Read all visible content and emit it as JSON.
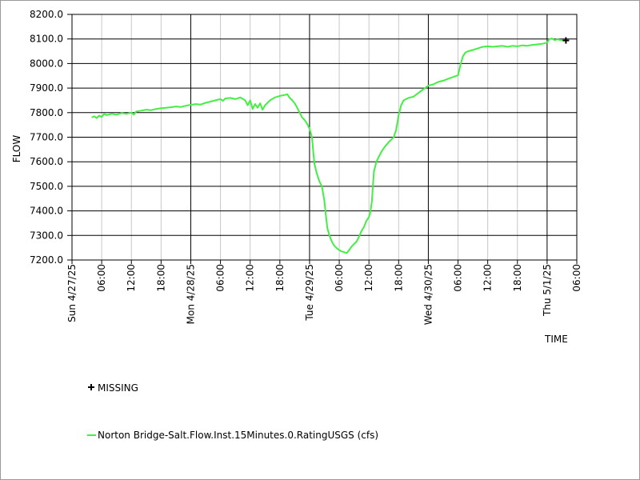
{
  "chart_data": {
    "type": "line",
    "xlabel": "TIME",
    "ylabel": "FLOW",
    "ylim": [
      7200,
      8200
    ],
    "y_ticks": [
      "7200.0",
      "7300.0",
      "7400.0",
      "7500.0",
      "7600.0",
      "7700.0",
      "7800.0",
      "7900.0",
      "8000.0",
      "8100.0",
      "8200.0"
    ],
    "xlim_hours": [
      0,
      102
    ],
    "x_ticks": [
      {
        "h": 0,
        "label": "Sun 4/27/25",
        "major": true
      },
      {
        "h": 6,
        "label": "06:00",
        "major": false
      },
      {
        "h": 12,
        "label": "12:00",
        "major": false
      },
      {
        "h": 18,
        "label": "18:00",
        "major": false
      },
      {
        "h": 24,
        "label": "Mon 4/28/25",
        "major": true
      },
      {
        "h": 30,
        "label": "06:00",
        "major": false
      },
      {
        "h": 36,
        "label": "12:00",
        "major": false
      },
      {
        "h": 42,
        "label": "18:00",
        "major": false
      },
      {
        "h": 48,
        "label": "Tue 4/29/25",
        "major": true
      },
      {
        "h": 54,
        "label": "06:00",
        "major": false
      },
      {
        "h": 60,
        "label": "12:00",
        "major": false
      },
      {
        "h": 66,
        "label": "18:00",
        "major": false
      },
      {
        "h": 72,
        "label": "Wed 4/30/25",
        "major": true
      },
      {
        "h": 78,
        "label": "06:00",
        "major": false
      },
      {
        "h": 84,
        "label": "12:00",
        "major": false
      },
      {
        "h": 90,
        "label": "18:00",
        "major": false
      },
      {
        "h": 96,
        "label": "Thu 5/1/25",
        "major": true
      },
      {
        "h": 102,
        "label": "06:00",
        "major": false
      }
    ],
    "series": [
      {
        "name": "Norton Bridge-Salt.Flow.Inst.15Minutes.0.RatingUSGS (cfs)",
        "color": "#44ee44",
        "points": [
          [
            4.0,
            7780
          ],
          [
            4.5,
            7785
          ],
          [
            5.0,
            7778
          ],
          [
            5.5,
            7788
          ],
          [
            6.0,
            7782
          ],
          [
            6.5,
            7795
          ],
          [
            7.0,
            7790
          ],
          [
            8.0,
            7795
          ],
          [
            9.0,
            7792
          ],
          [
            10.0,
            7798
          ],
          [
            11.0,
            7795
          ],
          [
            12.0,
            7800
          ],
          [
            12.5,
            7792
          ],
          [
            13.0,
            7805
          ],
          [
            14.0,
            7808
          ],
          [
            15.0,
            7812
          ],
          [
            16.0,
            7810
          ],
          [
            17.0,
            7815
          ],
          [
            18.0,
            7818
          ],
          [
            19.0,
            7820
          ],
          [
            20.0,
            7822
          ],
          [
            21.0,
            7825
          ],
          [
            22.0,
            7823
          ],
          [
            23.0,
            7828
          ],
          [
            24.0,
            7832
          ],
          [
            25.0,
            7835
          ],
          [
            26.0,
            7833
          ],
          [
            27.0,
            7840
          ],
          [
            28.0,
            7845
          ],
          [
            29.0,
            7850
          ],
          [
            30.0,
            7855
          ],
          [
            30.5,
            7848
          ],
          [
            31.0,
            7858
          ],
          [
            32.0,
            7860
          ],
          [
            33.0,
            7855
          ],
          [
            34.0,
            7862
          ],
          [
            35.0,
            7850
          ],
          [
            35.5,
            7830
          ],
          [
            36.0,
            7850
          ],
          [
            36.5,
            7815
          ],
          [
            37.0,
            7835
          ],
          [
            37.5,
            7820
          ],
          [
            38.0,
            7838
          ],
          [
            38.5,
            7812
          ],
          [
            39.0,
            7830
          ],
          [
            40.0,
            7850
          ],
          [
            41.0,
            7862
          ],
          [
            42.0,
            7868
          ],
          [
            43.0,
            7872
          ],
          [
            43.5,
            7875
          ],
          [
            44.0,
            7860
          ],
          [
            44.5,
            7850
          ],
          [
            45.0,
            7838
          ],
          [
            45.5,
            7820
          ],
          [
            46.0,
            7800
          ],
          [
            46.5,
            7780
          ],
          [
            47.0,
            7770
          ],
          [
            47.5,
            7755
          ],
          [
            48.0,
            7735
          ],
          [
            48.5,
            7700
          ],
          [
            48.7,
            7650
          ],
          [
            49.0,
            7590
          ],
          [
            49.5,
            7550
          ],
          [
            50.0,
            7520
          ],
          [
            50.5,
            7500
          ],
          [
            51.0,
            7440
          ],
          [
            51.3,
            7380
          ],
          [
            51.6,
            7330
          ],
          [
            52.0,
            7300
          ],
          [
            52.5,
            7275
          ],
          [
            53.0,
            7258
          ],
          [
            53.5,
            7248
          ],
          [
            54.0,
            7240
          ],
          [
            54.5,
            7235
          ],
          [
            55.0,
            7232
          ],
          [
            55.5,
            7228
          ],
          [
            56.0,
            7240
          ],
          [
            56.5,
            7255
          ],
          [
            57.0,
            7265
          ],
          [
            57.5,
            7275
          ],
          [
            58.0,
            7295
          ],
          [
            58.5,
            7318
          ],
          [
            59.0,
            7335
          ],
          [
            59.5,
            7360
          ],
          [
            60.0,
            7375
          ],
          [
            60.3,
            7395
          ],
          [
            60.6,
            7440
          ],
          [
            60.8,
            7500
          ],
          [
            61.0,
            7560
          ],
          [
            61.5,
            7600
          ],
          [
            62.0,
            7620
          ],
          [
            62.5,
            7640
          ],
          [
            63.0,
            7655
          ],
          [
            63.5,
            7668
          ],
          [
            64.0,
            7680
          ],
          [
            64.5,
            7690
          ],
          [
            65.0,
            7700
          ],
          [
            65.5,
            7730
          ],
          [
            66.0,
            7790
          ],
          [
            66.5,
            7830
          ],
          [
            67.0,
            7850
          ],
          [
            67.5,
            7855
          ],
          [
            68.0,
            7860
          ],
          [
            69.0,
            7865
          ],
          [
            70.0,
            7880
          ],
          [
            71.0,
            7895
          ],
          [
            72.0,
            7910
          ],
          [
            73.0,
            7915
          ],
          [
            74.0,
            7925
          ],
          [
            75.0,
            7930
          ],
          [
            76.0,
            7938
          ],
          [
            77.0,
            7945
          ],
          [
            78.0,
            7952
          ],
          [
            78.5,
            7995
          ],
          [
            79.0,
            8030
          ],
          [
            79.5,
            8045
          ],
          [
            80.0,
            8050
          ],
          [
            81.0,
            8055
          ],
          [
            82.0,
            8062
          ],
          [
            83.0,
            8068
          ],
          [
            84.0,
            8070
          ],
          [
            85.0,
            8068
          ],
          [
            86.0,
            8070
          ],
          [
            87.0,
            8072
          ],
          [
            88.0,
            8068
          ],
          [
            89.0,
            8072
          ],
          [
            90.0,
            8070
          ],
          [
            91.0,
            8074
          ],
          [
            92.0,
            8072
          ],
          [
            93.0,
            8076
          ],
          [
            94.0,
            8078
          ],
          [
            95.0,
            8080
          ],
          [
            96.0,
            8085
          ],
          [
            96.5,
            8100
          ],
          [
            97.0,
            8102
          ],
          [
            97.5,
            8095
          ],
          [
            98.0,
            8098
          ],
          [
            99.0,
            8095
          ],
          [
            99.5,
            8093
          ]
        ]
      }
    ],
    "markers": [
      {
        "name": "MISSING",
        "x_hour": 99.8,
        "y": 8094
      }
    ],
    "legend": {
      "missing_label": "MISSING",
      "series_label": "Norton Bridge-Salt.Flow.Inst.15Minutes.0.RatingUSGS (cfs)"
    },
    "grid": true
  }
}
